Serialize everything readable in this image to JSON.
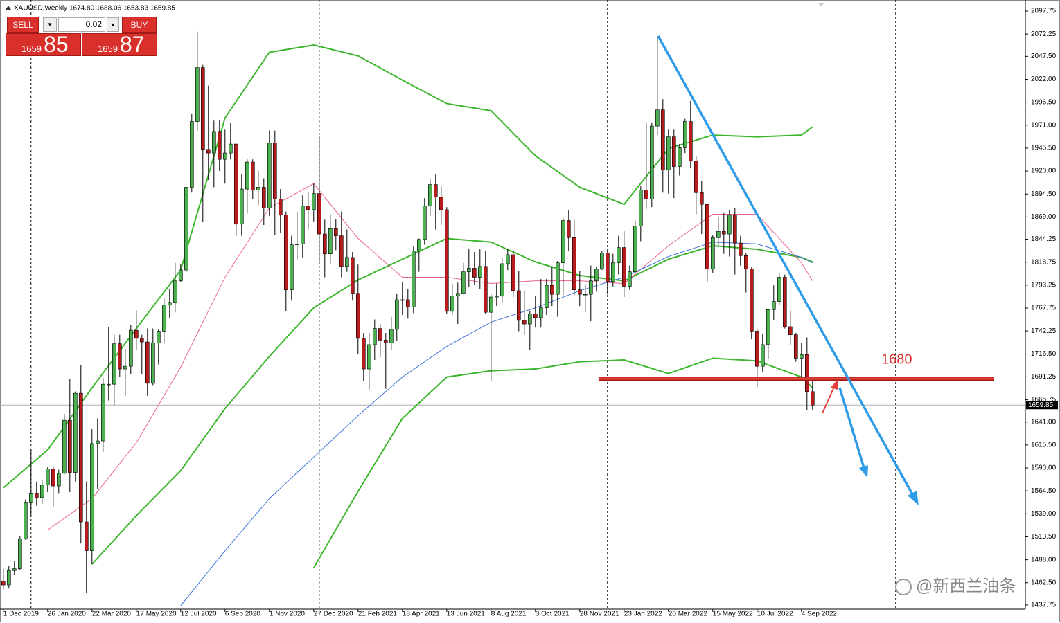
{
  "header": {
    "symbol": "XAUUSD,Weekly",
    "quote": "1674.80 1688.06 1653.83 1659.85"
  },
  "trade_panel": {
    "sell": "SELL",
    "buy": "BUY",
    "lot": "0.02",
    "sell_big": "85",
    "sell_small": "1659",
    "buy_big": "87",
    "buy_small": "1659"
  },
  "annotation": "1680",
  "watermark": "@新西兰油条",
  "chart_data": {
    "type": "candlestick",
    "up_color": "#4caf50",
    "down_color": "#b71c1c",
    "open": [
      1464,
      1460,
      1476,
      1478,
      1511,
      1552,
      1562,
      1557,
      1571,
      1589,
      1570,
      1584,
      1643,
      1585,
      1673,
      1530,
      1498,
      1617,
      1620,
      1683,
      1683,
      1728,
      1700,
      1703,
      1743,
      1734,
      1730,
      1684,
      1729,
      1742,
      1771,
      1774,
      1798,
      1810,
      1902,
      1975,
      2035,
      1944,
      1940,
      1964,
      1933,
      1940,
      1950,
      1861,
      1900,
      1930,
      1899,
      1902,
      1879,
      1951,
      1889,
      1871,
      1788,
      1838,
      1839,
      1881,
      1877,
      1895,
      1850,
      1828,
      1856,
      1848,
      1814,
      1824,
      1784,
      1734,
      1700,
      1727,
      1745,
      1732,
      1729,
      1744,
      1777,
      1777,
      1769,
      1831,
      1844,
      1881,
      1905,
      1891,
      1877,
      1764,
      1781,
      1784,
      1808,
      1812,
      1802,
      1814,
      1763,
      1780,
      1781,
      1817,
      1827,
      1787,
      1754,
      1750,
      1761,
      1757,
      1768,
      1793,
      1783,
      1818,
      1865,
      1846,
      1788,
      1783,
      1783,
      1798,
      1811,
      1829,
      1797,
      1818,
      1835,
      1792,
      1808,
      1859,
      1899,
      1889,
      1970,
      1988,
      1921,
      1958,
      1925,
      1946,
      1975,
      1931,
      1896,
      1883,
      1811,
      1846,
      1853,
      1850,
      1871,
      1840,
      1826,
      1811,
      1742,
      1703,
      1727,
      1766,
      1775,
      1802,
      1747,
      1738,
      1712,
      1716,
      1674.8
    ],
    "high": [
      1478,
      1481,
      1486,
      1514,
      1555,
      1611,
      1575,
      1576,
      1591,
      1592,
      1588,
      1650,
      1689,
      1675,
      1704,
      1575,
      1633,
      1645,
      1690,
      1747,
      1738,
      1738,
      1722,
      1749,
      1765,
      1738,
      1745,
      1745,
      1744,
      1779,
      1789,
      1818,
      1817,
      1902,
      1984,
      2075,
      2038,
      2015,
      1976,
      1977,
      1966,
      1973,
      1950,
      1917,
      1933,
      1933,
      1920,
      1912,
      1965,
      1965,
      1900,
      1875,
      1848,
      1875,
      1893,
      1896,
      1906,
      1959,
      1866,
      1872,
      1867,
      1875,
      1855,
      1830,
      1816,
      1740,
      1740,
      1755,
      1750,
      1740,
      1758,
      1784,
      1797,
      1789,
      1836,
      1845,
      1890,
      1912,
      1917,
      1903,
      1880,
      1795,
      1796,
      1818,
      1834,
      1830,
      1833,
      1831,
      1783,
      1795,
      1823,
      1834,
      1832,
      1809,
      1787,
      1764,
      1781,
      1800,
      1800,
      1814,
      1820,
      1868,
      1877,
      1866,
      1809,
      1794,
      1815,
      1814,
      1831,
      1831,
      1828,
      1848,
      1853,
      1815,
      1865,
      1903,
      1974,
      1974,
      2070,
      2000,
      1966,
      1966,
      1950,
      1978,
      1998,
      1936,
      1909,
      1884,
      1849,
      1869,
      1874,
      1877,
      1879,
      1848,
      1829,
      1813,
      1745,
      1739,
      1767,
      1793,
      1807,
      1805,
      1765,
      1740,
      1729,
      1735,
      1688.06
    ],
    "low": [
      1455,
      1456,
      1471,
      1477,
      1510,
      1537,
      1548,
      1550,
      1563,
      1547,
      1562,
      1583,
      1563,
      1575,
      1506,
      1451,
      1483,
      1567,
      1608,
      1665,
      1660,
      1691,
      1670,
      1694,
      1721,
      1694,
      1670,
      1682,
      1705,
      1728,
      1757,
      1763,
      1797,
      1808,
      1896,
      1965,
      1863,
      1910,
      1902,
      1920,
      1906,
      1933,
      1848,
      1848,
      1873,
      1889,
      1882,
      1860,
      1870,
      1849,
      1851,
      1764,
      1776,
      1822,
      1824,
      1855,
      1864,
      1817,
      1802,
      1817,
      1832,
      1802,
      1808,
      1776,
      1717,
      1687,
      1677,
      1710,
      1713,
      1678,
      1721,
      1731,
      1760,
      1756,
      1762,
      1808,
      1838,
      1870,
      1855,
      1860,
      1761,
      1760,
      1750,
      1783,
      1791,
      1794,
      1789,
      1761,
      1687,
      1770,
      1774,
      1810,
      1780,
      1742,
      1738,
      1721,
      1746,
      1746,
      1760,
      1770,
      1758,
      1782,
      1831,
      1782,
      1770,
      1763,
      1753,
      1786,
      1810,
      1783,
      1791,
      1805,
      1780,
      1788,
      1807,
      1842,
      1878,
      1880,
      1960,
      1896,
      1895,
      1890,
      1915,
      1940,
      1923,
      1872,
      1850,
      1797,
      1807,
      1837,
      1828,
      1825,
      1805,
      1815,
      1785,
      1733,
      1680,
      1697,
      1711,
      1754,
      1771,
      1745,
      1727,
      1708,
      1691,
      1654,
      1653.83
    ],
    "close": [
      1460,
      1476,
      1478,
      1511,
      1552,
      1562,
      1557,
      1571,
      1589,
      1570,
      1584,
      1643,
      1585,
      1673,
      1530,
      1498,
      1617,
      1620,
      1683,
      1683,
      1728,
      1700,
      1703,
      1743,
      1734,
      1730,
      1684,
      1729,
      1742,
      1771,
      1774,
      1798,
      1810,
      1902,
      1975,
      2035,
      1944,
      1940,
      1964,
      1933,
      1940,
      1950,
      1861,
      1900,
      1930,
      1899,
      1902,
      1879,
      1951,
      1889,
      1871,
      1788,
      1838,
      1839,
      1881,
      1877,
      1895,
      1850,
      1828,
      1856,
      1848,
      1814,
      1824,
      1784,
      1734,
      1700,
      1727,
      1745,
      1732,
      1729,
      1744,
      1777,
      1777,
      1769,
      1831,
      1844,
      1881,
      1905,
      1891,
      1877,
      1764,
      1781,
      1784,
      1808,
      1812,
      1802,
      1814,
      1763,
      1780,
      1781,
      1817,
      1827,
      1787,
      1754,
      1750,
      1761,
      1757,
      1768,
      1793,
      1783,
      1818,
      1865,
      1846,
      1788,
      1783,
      1783,
      1798,
      1811,
      1829,
      1797,
      1818,
      1835,
      1792,
      1808,
      1859,
      1899,
      1889,
      1970,
      1988,
      1921,
      1958,
      1925,
      1946,
      1975,
      1931,
      1896,
      1883,
      1811,
      1846,
      1853,
      1850,
      1871,
      1840,
      1826,
      1811,
      1742,
      1703,
      1727,
      1766,
      1775,
      1802,
      1747,
      1738,
      1712,
      1716,
      1674.8,
      1659.85
    ],
    "indicator_x": [
      0,
      8,
      16,
      24,
      32,
      40,
      48,
      56,
      64,
      72,
      80,
      88,
      96,
      104,
      112,
      120,
      128,
      136,
      144,
      146
    ],
    "indicators": [
      {
        "color": "#3cb62c",
        "values": [
          1568,
          1610,
          1679,
          1745,
          1810,
          1979,
          2052,
          2060,
          2048,
          2021,
          1995,
          1987,
          1937,
          1902,
          1883,
          1945,
          1960,
          1958,
          1960,
          1969
        ]
      },
      {
        "color": "#3cb62c",
        "values": [
          null,
          null,
          1483,
          1537,
          1587,
          1656,
          1714,
          1768,
          1799,
          1822,
          1845,
          1841,
          1819,
          1804,
          1798,
          1822,
          1837,
          1833,
          1824,
          1819
        ]
      },
      {
        "color": "#3cb62c",
        "values": [
          null,
          null,
          null,
          null,
          null,
          null,
          null,
          1479,
          1564,
          1645,
          1691,
          1698,
          1700,
          1708,
          1710,
          1695,
          1712,
          1709,
          1691,
          1679
        ]
      },
      {
        "color": "#e8638a",
        "values": [
          null,
          1521,
          1556,
          1618,
          1702,
          1802,
          1879,
          1906,
          1845,
          1802,
          1802,
          1795,
          1798,
          1798,
          1795,
          1837,
          1872,
          1872,
          1818,
          1798
        ]
      },
      {
        "color": "#3a6fd8",
        "values": [
          null,
          null,
          null,
          null,
          1437,
          1498,
          1556,
          1602,
          1648,
          1691,
          1725,
          1752,
          1768,
          1787,
          1802,
          1825,
          1841,
          1839,
          1824,
          1818
        ]
      }
    ],
    "current_price": 1659.85,
    "xlim": [
      -0.6,
      184.4
    ],
    "ylim": [
      1433.1,
      2105.45
    ],
    "separators": [
      5,
      57,
      109,
      161
    ],
    "xticks": [
      {
        "value": 0,
        "label": "1 Dec 2019"
      },
      {
        "value": 8,
        "label": "26 Jan 2020"
      },
      {
        "value": 16,
        "label": "22 Mar 2020"
      },
      {
        "value": 24,
        "label": "17 May 2020"
      },
      {
        "value": 32,
        "label": "12 Jul 2020"
      },
      {
        "value": 40,
        "label": "6 Sep 2020"
      },
      {
        "value": 48,
        "label": "1 Nov 2020"
      },
      {
        "value": 56,
        "label": "27 Dec 2020"
      },
      {
        "value": 64,
        "label": "21 Feb 2021"
      },
      {
        "value": 72,
        "label": "18 Apr 2021"
      },
      {
        "value": 80,
        "label": "13 Jun 2021"
      },
      {
        "value": 88,
        "label": "8 Aug 2021"
      },
      {
        "value": 96,
        "label": "3 Oct 2021"
      },
      {
        "value": 104,
        "label": "28 Nov 2021"
      },
      {
        "value": 112,
        "label": "23 Jan 2022"
      },
      {
        "value": 120,
        "label": "20 Mar 2022"
      },
      {
        "value": 128,
        "label": "15 May 2022"
      },
      {
        "value": 136,
        "label": "10 Jul 2022"
      },
      {
        "value": 144,
        "label": "4 Sep 2022"
      }
    ],
    "yticks": [
      2097.75,
      2072.25,
      {
        "value": 2047.5,
        "label": "2047.50"
      },
      {
        "value": 2022,
        "label": "2022.00"
      },
      {
        "value": 1996.5,
        "label": "1996.50"
      },
      {
        "value": 1971,
        "label": "1971.00"
      },
      {
        "value": 1945.5,
        "label": "1945.50"
      },
      {
        "value": 1920,
        "label": "1920.00"
      },
      {
        "value": 1894.5,
        "label": "1894.50"
      },
      {
        "value": 1869,
        "label": "1869.00"
      },
      1844.25,
      1818.75,
      1793.25,
      1767.75,
      1742.25,
      {
        "value": 1716.5,
        "label": "1716.50"
      },
      1691.25,
      1665.75,
      {
        "value": 1641,
        "label": "1641.00"
      },
      {
        "value": 1615.5,
        "label": "1615.50"
      },
      {
        "value": 1590,
        "label": "1590.00"
      },
      {
        "value": 1564.5,
        "label": "1564.50"
      },
      {
        "value": 1539,
        "label": "1539.00"
      },
      {
        "value": 1513.5,
        "label": "1513.50"
      },
      {
        "value": 1488,
        "label": "1488.00"
      },
      {
        "value": 1462.5,
        "label": "1462.50"
      },
      1437.75
    ]
  }
}
